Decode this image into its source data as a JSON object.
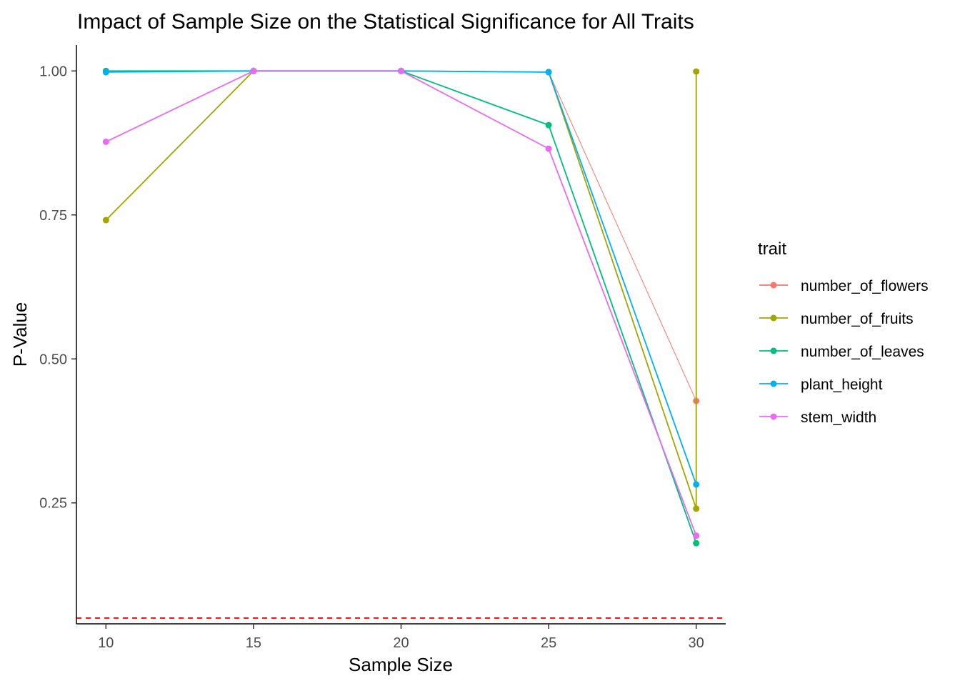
{
  "chart_data": {
    "type": "line",
    "title": "Impact of Sample Size on the Statistical Significance for All Traits",
    "xlabel": "Sample Size",
    "ylabel": "P-Value",
    "xlim": [
      9,
      31
    ],
    "ylim": [
      0.04,
      1.045
    ],
    "x_ticks": [
      10,
      15,
      20,
      25,
      30
    ],
    "y_ticks": [
      0.25,
      0.5,
      0.75,
      1.0
    ],
    "x_tick_labels": [
      "10",
      "15",
      "20",
      "25",
      "30"
    ],
    "y_tick_labels": [
      "0.25",
      "0.50",
      "0.75",
      "1.00"
    ],
    "grid": false,
    "legend_title": "trait",
    "legend_position": "right",
    "reference_line": {
      "y": 0.05,
      "color": "#ff0000",
      "style": "dashed"
    },
    "series": [
      {
        "name": "number_of_flowers",
        "color": "#F8766D",
        "points": [
          [
            10,
            0.998
          ],
          [
            15,
            1.0
          ],
          [
            20,
            1.0
          ],
          [
            25,
            0.998
          ],
          [
            30,
            0.427
          ]
        ]
      },
      {
        "name": "number_of_fruits",
        "color": "#A3A500",
        "points": [
          [
            10,
            0.741
          ],
          [
            15,
            1.0
          ],
          [
            20,
            1.0
          ],
          [
            25,
            0.998
          ],
          [
            30,
            0.24
          ],
          [
            30,
            0.999
          ]
        ]
      },
      {
        "name": "number_of_leaves",
        "color": "#00BF7D",
        "points": [
          [
            10,
            1.0
          ],
          [
            15,
            1.0
          ],
          [
            20,
            1.0
          ],
          [
            25,
            0.906
          ],
          [
            30,
            0.18
          ]
        ]
      },
      {
        "name": "plant_height",
        "color": "#00B0F6",
        "points": [
          [
            10,
            0.998
          ],
          [
            15,
            1.0
          ],
          [
            20,
            1.0
          ],
          [
            25,
            0.998
          ],
          [
            30,
            0.282
          ]
        ]
      },
      {
        "name": "stem_width",
        "color": "#E76BF3",
        "points": [
          [
            10,
            0.877
          ],
          [
            15,
            1.0
          ],
          [
            20,
            1.0
          ],
          [
            25,
            0.865
          ],
          [
            30,
            0.193
          ]
        ]
      }
    ]
  }
}
